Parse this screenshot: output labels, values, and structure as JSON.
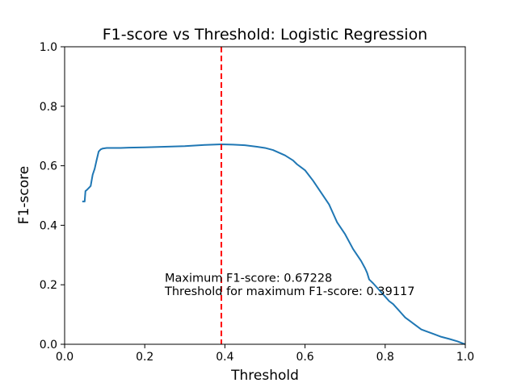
{
  "chart_data": {
    "type": "line",
    "title": "F1-score vs Threshold:  Logistic Regression",
    "xlabel": "Threshold",
    "ylabel": "F1-score",
    "xlim": [
      0.0,
      1.0
    ],
    "ylim": [
      0.0,
      1.0
    ],
    "xticks": [
      "0.0",
      "0.2",
      "0.4",
      "0.6",
      "0.8",
      "1.0"
    ],
    "yticks": [
      "0.0",
      "0.2",
      "0.4",
      "0.6",
      "0.8",
      "1.0"
    ],
    "grid": false,
    "series": [
      {
        "color": "#1f77b4",
        "x": [
          0.044,
          0.05,
          0.052,
          0.055,
          0.06,
          0.065,
          0.068,
          0.07,
          0.075,
          0.08,
          0.085,
          0.09,
          0.095,
          0.1,
          0.105,
          0.11,
          0.12,
          0.14,
          0.16,
          0.2,
          0.25,
          0.3,
          0.35,
          0.391,
          0.42,
          0.45,
          0.48,
          0.5,
          0.52,
          0.55,
          0.57,
          0.58,
          0.59,
          0.6,
          0.62,
          0.64,
          0.66,
          0.67,
          0.68,
          0.7,
          0.72,
          0.73,
          0.74,
          0.75,
          0.755,
          0.76,
          0.77,
          0.78,
          0.79,
          0.8,
          0.81,
          0.82,
          0.83,
          0.84,
          0.85,
          0.87,
          0.89,
          0.9,
          0.92,
          0.94,
          0.96,
          0.98,
          0.99,
          1.0
        ],
        "y": [
          0.48,
          0.48,
          0.515,
          0.518,
          0.525,
          0.532,
          0.555,
          0.57,
          0.59,
          0.62,
          0.648,
          0.655,
          0.658,
          0.659,
          0.66,
          0.66,
          0.66,
          0.66,
          0.661,
          0.662,
          0.664,
          0.666,
          0.67,
          0.672,
          0.671,
          0.669,
          0.664,
          0.66,
          0.653,
          0.635,
          0.618,
          0.605,
          0.595,
          0.585,
          0.55,
          0.51,
          0.47,
          0.44,
          0.41,
          0.37,
          0.32,
          0.3,
          0.28,
          0.255,
          0.24,
          0.218,
          0.205,
          0.19,
          0.175,
          0.16,
          0.145,
          0.135,
          0.12,
          0.105,
          0.09,
          0.07,
          0.05,
          0.045,
          0.035,
          0.025,
          0.018,
          0.01,
          0.005,
          0.0
        ]
      }
    ],
    "vline": {
      "x": 0.39117,
      "color": "#ff0000",
      "style": "dashed"
    },
    "annotations": [
      {
        "text": "Maximum F1-score: 0.67228",
        "x": 0.25,
        "y": 0.21
      },
      {
        "text": "Threshold for maximum F1-score: 0.39117",
        "x": 0.25,
        "y": 0.165
      }
    ]
  }
}
